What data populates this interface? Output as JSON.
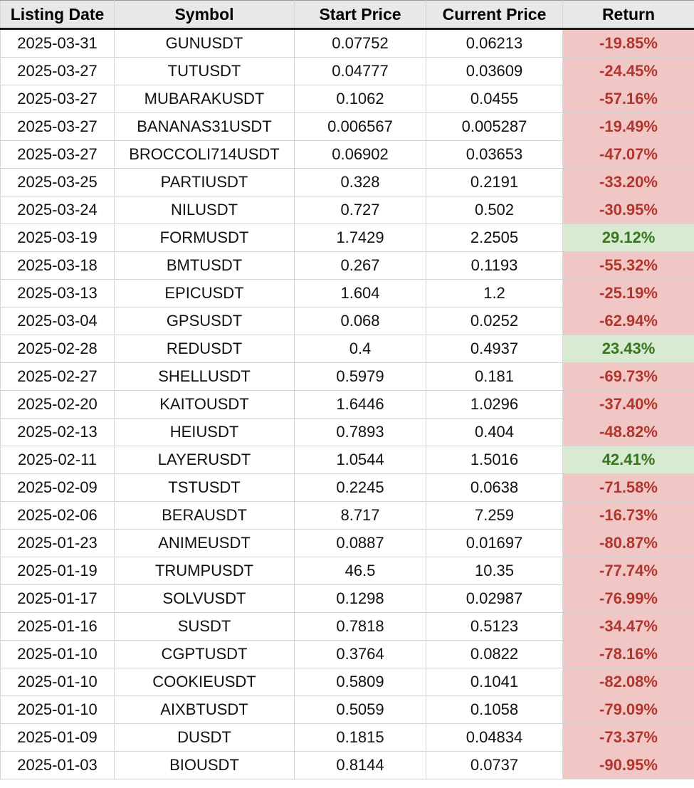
{
  "chart_data": {
    "type": "table",
    "columns": [
      "Listing Date",
      "Symbol",
      "Start Price",
      "Current Price",
      "Return"
    ],
    "rows": [
      {
        "listing_date": "2025-03-31",
        "symbol": "GUNUSDT",
        "start_price": "0.07752",
        "current_price": "0.06213",
        "return_pct": "-19.85%"
      },
      {
        "listing_date": "2025-03-27",
        "symbol": "TUTUSDT",
        "start_price": "0.04777",
        "current_price": "0.03609",
        "return_pct": "-24.45%"
      },
      {
        "listing_date": "2025-03-27",
        "symbol": "MUBARAKUSDT",
        "start_price": "0.1062",
        "current_price": "0.0455",
        "return_pct": "-57.16%"
      },
      {
        "listing_date": "2025-03-27",
        "symbol": "BANANAS31USDT",
        "start_price": "0.006567",
        "current_price": "0.005287",
        "return_pct": "-19.49%"
      },
      {
        "listing_date": "2025-03-27",
        "symbol": "BROCCOLI714USDT",
        "start_price": "0.06902",
        "current_price": "0.03653",
        "return_pct": "-47.07%"
      },
      {
        "listing_date": "2025-03-25",
        "symbol": "PARTIUSDT",
        "start_price": "0.328",
        "current_price": "0.2191",
        "return_pct": "-33.20%"
      },
      {
        "listing_date": "2025-03-24",
        "symbol": "NILUSDT",
        "start_price": "0.727",
        "current_price": "0.502",
        "return_pct": "-30.95%"
      },
      {
        "listing_date": "2025-03-19",
        "symbol": "FORMUSDT",
        "start_price": "1.7429",
        "current_price": "2.2505",
        "return_pct": "29.12%"
      },
      {
        "listing_date": "2025-03-18",
        "symbol": "BMTUSDT",
        "start_price": "0.267",
        "current_price": "0.1193",
        "return_pct": "-55.32%"
      },
      {
        "listing_date": "2025-03-13",
        "symbol": "EPICUSDT",
        "start_price": "1.604",
        "current_price": "1.2",
        "return_pct": "-25.19%"
      },
      {
        "listing_date": "2025-03-04",
        "symbol": "GPSUSDT",
        "start_price": "0.068",
        "current_price": "0.0252",
        "return_pct": "-62.94%"
      },
      {
        "listing_date": "2025-02-28",
        "symbol": "REDUSDT",
        "start_price": "0.4",
        "current_price": "0.4937",
        "return_pct": "23.43%"
      },
      {
        "listing_date": "2025-02-27",
        "symbol": "SHELLUSDT",
        "start_price": "0.5979",
        "current_price": "0.181",
        "return_pct": "-69.73%"
      },
      {
        "listing_date": "2025-02-20",
        "symbol": "KAITOUSDT",
        "start_price": "1.6446",
        "current_price": "1.0296",
        "return_pct": "-37.40%"
      },
      {
        "listing_date": "2025-02-13",
        "symbol": "HEIUSDT",
        "start_price": "0.7893",
        "current_price": "0.404",
        "return_pct": "-48.82%"
      },
      {
        "listing_date": "2025-02-11",
        "symbol": "LAYERUSDT",
        "start_price": "1.0544",
        "current_price": "1.5016",
        "return_pct": "42.41%"
      },
      {
        "listing_date": "2025-02-09",
        "symbol": "TSTUSDT",
        "start_price": "0.2245",
        "current_price": "0.0638",
        "return_pct": "-71.58%"
      },
      {
        "listing_date": "2025-02-06",
        "symbol": "BERAUSDT",
        "start_price": "8.717",
        "current_price": "7.259",
        "return_pct": "-16.73%"
      },
      {
        "listing_date": "2025-01-23",
        "symbol": "ANIMEUSDT",
        "start_price": "0.0887",
        "current_price": "0.01697",
        "return_pct": "-80.87%"
      },
      {
        "listing_date": "2025-01-19",
        "symbol": "TRUMPUSDT",
        "start_price": "46.5",
        "current_price": "10.35",
        "return_pct": "-77.74%"
      },
      {
        "listing_date": "2025-01-17",
        "symbol": "SOLVUSDT",
        "start_price": "0.1298",
        "current_price": "0.02987",
        "return_pct": "-76.99%"
      },
      {
        "listing_date": "2025-01-16",
        "symbol": "SUSDT",
        "start_price": "0.7818",
        "current_price": "0.5123",
        "return_pct": "-34.47%"
      },
      {
        "listing_date": "2025-01-10",
        "symbol": "CGPTUSDT",
        "start_price": "0.3764",
        "current_price": "0.0822",
        "return_pct": "-78.16%"
      },
      {
        "listing_date": "2025-01-10",
        "symbol": "COOKIEUSDT",
        "start_price": "0.5809",
        "current_price": "0.1041",
        "return_pct": "-82.08%"
      },
      {
        "listing_date": "2025-01-10",
        "symbol": "AIXBTUSDT",
        "start_price": "0.5059",
        "current_price": "0.1058",
        "return_pct": "-79.09%"
      },
      {
        "listing_date": "2025-01-09",
        "symbol": "DUSDT",
        "start_price": "0.1815",
        "current_price": "0.04834",
        "return_pct": "-73.37%"
      },
      {
        "listing_date": "2025-01-03",
        "symbol": "BIOUSDT",
        "start_price": "0.8144",
        "current_price": "0.0737",
        "return_pct": "-90.95%"
      }
    ]
  },
  "colors": {
    "header_bg": "#e8e8e8",
    "grid_line": "#d5d5d5",
    "negative_bg": "#f1c7c5",
    "negative_text": "#b0352c",
    "positive_bg": "#d9ead3",
    "positive_text": "#38761d"
  }
}
